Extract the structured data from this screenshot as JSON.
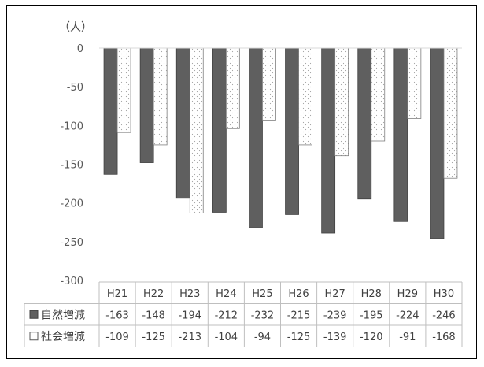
{
  "colors": {
    "natural": "#5f5f5f",
    "social": "#ffffff",
    "social_dots": "#a6a6a6",
    "axis": "#d9d9d9",
    "table_border": "#bfbfbf",
    "text": "#404040"
  },
  "chart_data": {
    "type": "bar",
    "title": "",
    "unit_label": "（人）",
    "xlabel": "",
    "ylabel": "",
    "ylim": [
      -300,
      0
    ],
    "yticks": [
      0,
      -50,
      -100,
      -150,
      -200,
      -250,
      -300
    ],
    "ytick_labels": [
      "0",
      "-50",
      "-100",
      "-150",
      "-200",
      "-250",
      "-300"
    ],
    "grid": false,
    "legend": "table-left",
    "categories": [
      "H21",
      "H22",
      "H23",
      "H24",
      "H25",
      "H26",
      "H27",
      "H28",
      "H29",
      "H30"
    ],
    "series": [
      {
        "name": "自然増減",
        "legend_marker": "■",
        "values": [
          -163,
          -148,
          -194,
          -212,
          -232,
          -215,
          -239,
          -195,
          -224,
          -246
        ],
        "labels": [
          "-163",
          "-148",
          "-194",
          "-212",
          "-232",
          "-215",
          "-239",
          "-195",
          "-224",
          "-246"
        ]
      },
      {
        "name": "社会増減",
        "legend_marker": "□",
        "values": [
          -109,
          -125,
          -213,
          -104,
          -94,
          -125,
          -139,
          -120,
          -91,
          -168
        ],
        "labels": [
          "-109",
          "-125",
          "-213",
          "-104",
          "-94",
          "-125",
          "-139",
          "-120",
          "-91",
          "-168"
        ]
      }
    ]
  }
}
